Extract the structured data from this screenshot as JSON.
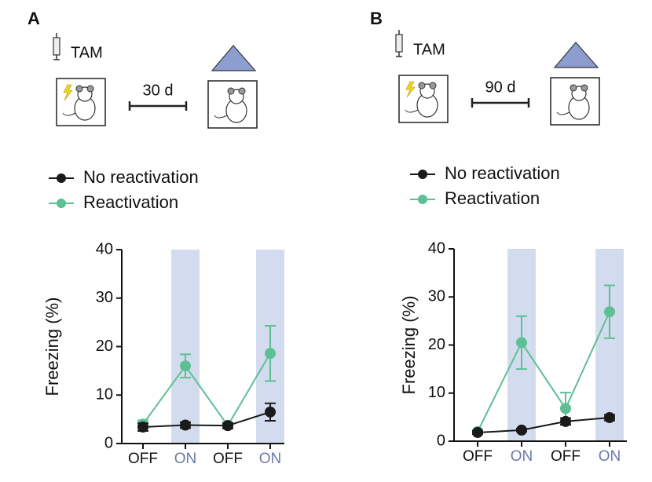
{
  "chart_data": [
    {
      "type": "line",
      "panel_label": "A",
      "annotations": [
        "TAM",
        "30 d"
      ],
      "categories": [
        "OFF",
        "ON",
        "OFF",
        "ON"
      ],
      "category_colors": [
        "#111111",
        "#6b7aa8",
        "#111111",
        "#6b7aa8"
      ],
      "highlight": [
        false,
        true,
        false,
        true
      ],
      "highlight_color": "#d3dcee",
      "ylabel": "Freezing (%)",
      "ylim": [
        0,
        40
      ],
      "yticks": [
        0,
        10,
        20,
        30,
        40
      ],
      "series": [
        {
          "name": "No reactivation",
          "color": "#1a1a1a",
          "values": [
            3.4,
            3.8,
            3.7,
            6.5
          ],
          "errors": [
            0.8,
            0.6,
            0.6,
            1.8
          ]
        },
        {
          "name": "Reactivation",
          "color": "#5dbf94",
          "values": [
            4.0,
            16.0,
            3.7,
            18.6
          ],
          "errors": [
            0.8,
            2.4,
            0.5,
            5.7
          ]
        }
      ]
    },
    {
      "type": "line",
      "panel_label": "B",
      "annotations": [
        "TAM",
        "90 d"
      ],
      "categories": [
        "OFF",
        "ON",
        "OFF",
        "ON"
      ],
      "category_colors": [
        "#111111",
        "#6b7aa8",
        "#111111",
        "#6b7aa8"
      ],
      "highlight": [
        false,
        true,
        false,
        true
      ],
      "highlight_color": "#d3dcee",
      "ylabel": "Freezing (%)",
      "ylim": [
        0,
        40
      ],
      "yticks": [
        0,
        10,
        20,
        30,
        40
      ],
      "series": [
        {
          "name": "No reactivation",
          "color": "#1a1a1a",
          "values": [
            1.8,
            2.3,
            4.1,
            4.9
          ],
          "errors": [
            0.3,
            0.3,
            0.7,
            0.6
          ]
        },
        {
          "name": "Reactivation",
          "color": "#5dbf94",
          "values": [
            2.0,
            20.5,
            6.8,
            26.9
          ],
          "errors": [
            0.3,
            5.5,
            3.3,
            5.5
          ]
        }
      ]
    }
  ]
}
